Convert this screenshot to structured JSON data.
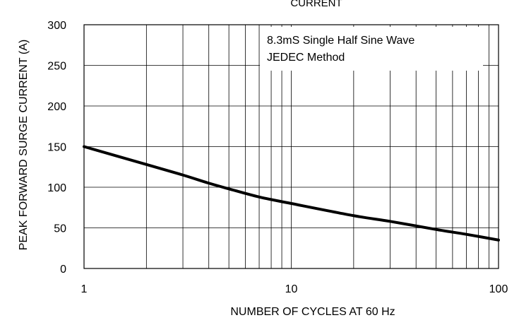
{
  "chart_data": {
    "type": "line",
    "title": "CURRENT",
    "xlabel": "NUMBER OF CYCLES AT 60 Hz",
    "ylabel": "PEAK FORWARD SURGE CURRENT (A)",
    "x_scale": "log",
    "xlim": [
      1,
      100
    ],
    "ylim": [
      0,
      300
    ],
    "x_ticks": [
      "1",
      "10",
      "100"
    ],
    "y_ticks": [
      "0",
      "50",
      "100",
      "150",
      "200",
      "250",
      "300"
    ],
    "grid": true,
    "annotation": [
      "8.3mS Single Half Sine Wave",
      "JEDEC Method"
    ],
    "series": [
      {
        "color": "#000000",
        "x": [
          1,
          2,
          3,
          4,
          5,
          7,
          10,
          20,
          30,
          50,
          70,
          100
        ],
        "y": [
          150,
          128,
          115,
          105,
          98,
          88,
          80,
          65,
          58,
          48,
          42,
          35
        ]
      }
    ]
  }
}
